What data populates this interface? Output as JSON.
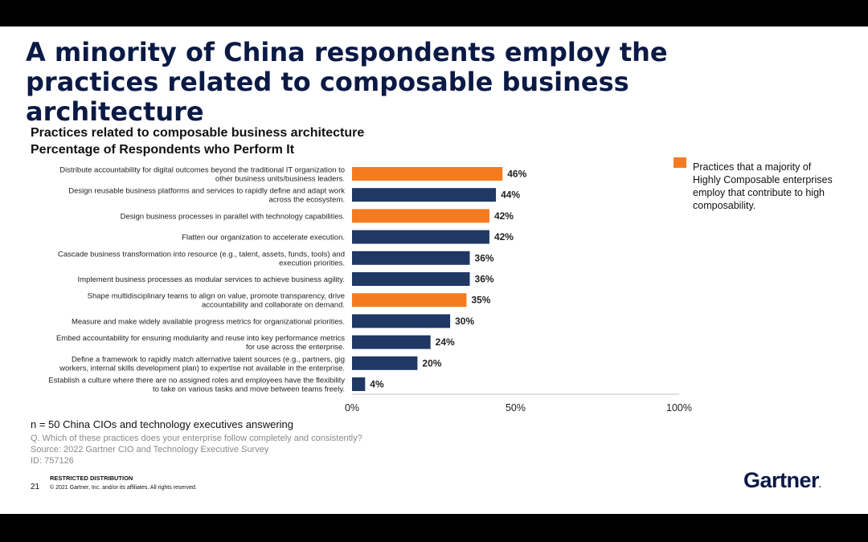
{
  "slide": {
    "headline": "A minority of China respondents employ the practices related to composable business architecture",
    "notes": {
      "n": "n = 50 China CIOs and technology executives answering",
      "question": "Q. Which of these practices does your enterprise follow completely and consistently?",
      "source": "Source: 2022 Gartner CIO and Technology Executive Survey",
      "id": "ID: 757126"
    },
    "footer": {
      "restricted": "RESTRICTED DISTRIBUTION",
      "page_number": "21",
      "copyright": "© 2021 Gartner, Inc. and/or its affiliates. All rights reserved.",
      "logo": "Gartner"
    },
    "legend": {
      "text": "Practices that a majority of Highly Composable enterprises employ that contribute to high composability.",
      "color": "#f47b20"
    }
  },
  "chart_data": {
    "type": "bar",
    "orientation": "horizontal",
    "title": "Practices related to composable business architecture",
    "subtitle": "Percentage of Respondents who Perform It",
    "xlim": [
      0,
      100
    ],
    "x_ticks": [
      "0%",
      "50%",
      "100%"
    ],
    "x_tick_values": [
      0,
      50,
      100
    ],
    "colors": {
      "highlight": "#f47b20",
      "default": "#1f3864"
    },
    "categories": [
      [
        "Distribute accountability for digital outcomes beyond the traditional IT organization to",
        "other business units/business leaders."
      ],
      [
        "Design reusable business platforms and services to rapidly define and adapt work",
        "across the ecosystem."
      ],
      [
        "Design business processes in parallel with technology capabilities."
      ],
      [
        "Flatten our organization to accelerate execution."
      ],
      [
        "Cascade business transformation into resource (e.g., talent, assets, funds, tools) and",
        "execution priorities."
      ],
      [
        "Implement business processes as modular services to achieve business agility."
      ],
      [
        "Shape multidisciplinary teams  to align on value, promote transparency, drive",
        "accountability and collaborate on demand."
      ],
      [
        "Measure and make widely available progress metrics for organizational priorities."
      ],
      [
        "Embed accountability for ensuring modularity and reuse into key performance metrics",
        "for use across the enterprise."
      ],
      [
        "Define a framework to rapidly match alternative talent sources (e.g., partners, gig",
        "workers, internal skills development plan) to expertise not available in the enterprise."
      ],
      [
        "Establish a culture where there are no assigned roles and employees have the flexibility",
        "to take on various tasks and move between teams freely."
      ]
    ],
    "values": [
      46,
      44,
      42,
      42,
      36,
      36,
      35,
      30,
      24,
      20,
      4
    ],
    "value_labels": [
      "46%",
      "44%",
      "42%",
      "42%",
      "36%",
      "36%",
      "35%",
      "30%",
      "24%",
      "20%",
      "4%"
    ],
    "highlighted": [
      true,
      false,
      true,
      false,
      false,
      false,
      true,
      false,
      false,
      false,
      false
    ]
  }
}
